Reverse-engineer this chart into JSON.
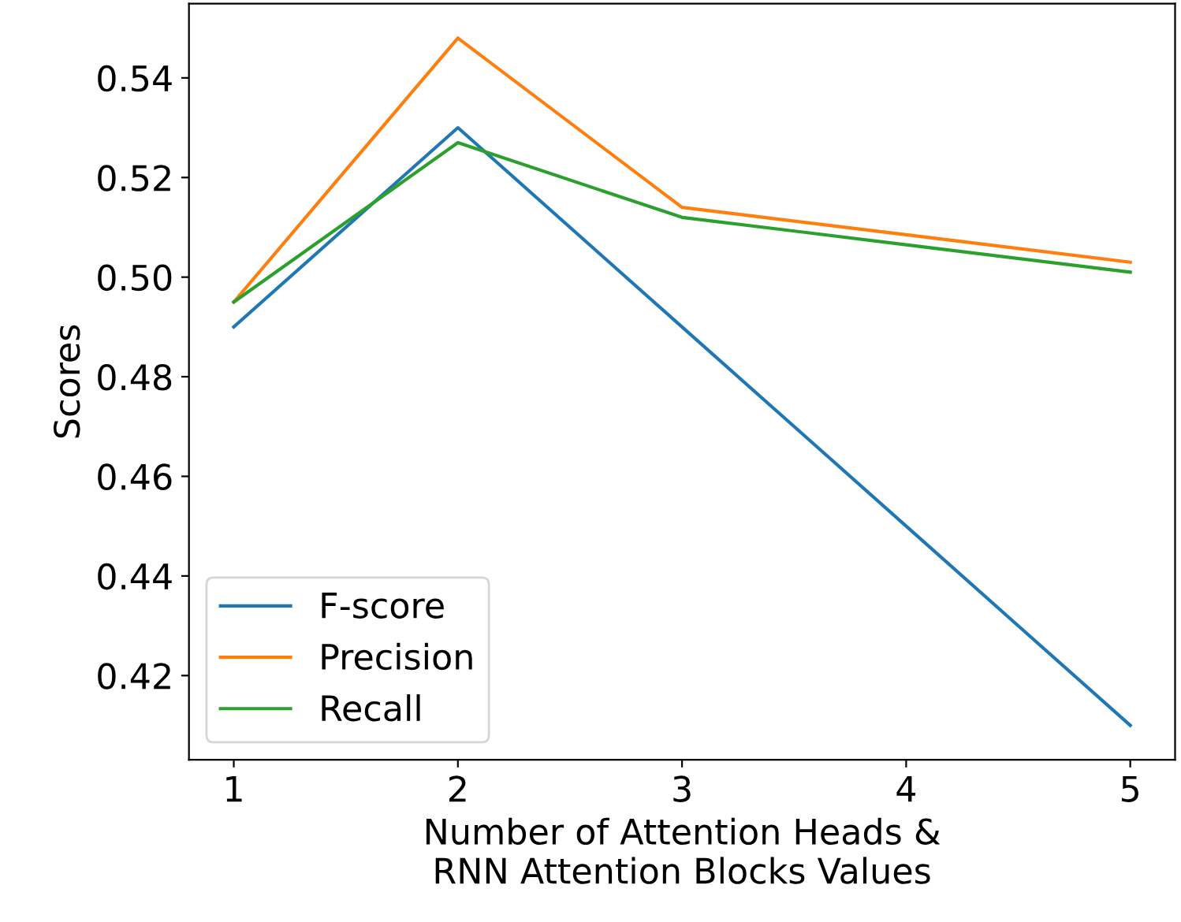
{
  "chart_data": {
    "type": "line",
    "xlabel": "Number of Attention Heads &\nRNN Attention Blocks Values",
    "ylabel": "Scores",
    "x": [
      1,
      2,
      3,
      4,
      5
    ],
    "series": [
      {
        "name": "F-score",
        "color": "#1f77b4",
        "values": [
          0.49,
          0.53,
          0.49,
          0.45,
          0.41
        ]
      },
      {
        "name": "Precision",
        "color": "#ff7f0e",
        "values": [
          0.495,
          0.548,
          0.514,
          0.5085,
          0.503
        ]
      },
      {
        "name": "Recall",
        "color": "#2ca02c",
        "values": [
          0.495,
          0.527,
          0.512,
          0.5065,
          0.501
        ]
      }
    ],
    "xlim": [
      0.8,
      5.2
    ],
    "xticks": [
      1,
      2,
      3,
      4,
      5
    ],
    "ylim": [
      0.4031,
      0.5549
    ],
    "yticks": [
      0.42,
      0.44,
      0.46,
      0.48,
      {
        "value": 0.5,
        "label": "0.50"
      },
      0.52,
      0.54
    ],
    "grid": false,
    "legend": "bottom left",
    "marker": "none",
    "line_style": "solid"
  }
}
